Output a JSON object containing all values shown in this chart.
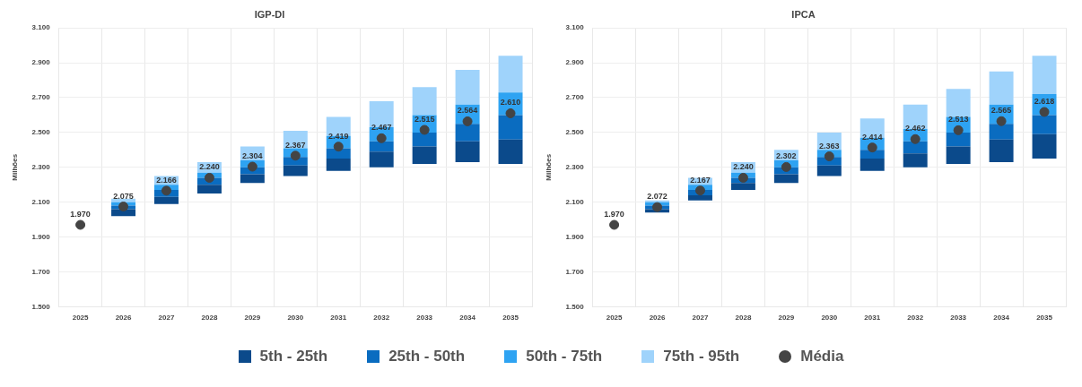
{
  "chart_data": [
    {
      "type": "bar",
      "title": "IGP-DI",
      "ylabel": "Milhões",
      "categories": [
        "2025",
        "2026",
        "2027",
        "2028",
        "2029",
        "2030",
        "2031",
        "2032",
        "2033",
        "2034",
        "2035"
      ],
      "series": [
        {
          "name": "5th - 25th",
          "color": "#0b4a8b",
          "base": [
            null,
            2.02,
            2.09,
            2.15,
            2.21,
            2.25,
            2.28,
            2.3,
            2.32,
            2.33,
            2.32
          ],
          "values": [
            null,
            0.04,
            0.04,
            0.05,
            0.05,
            0.06,
            0.07,
            0.09,
            0.1,
            0.12,
            0.14
          ]
        },
        {
          "name": "25th - 50th",
          "color": "#0a6cc0",
          "base": [
            null,
            2.06,
            2.13,
            2.2,
            2.26,
            2.31,
            2.35,
            2.39,
            2.42,
            2.45,
            2.46
          ],
          "values": [
            null,
            0.02,
            0.04,
            0.04,
            0.04,
            0.05,
            0.06,
            0.06,
            0.08,
            0.1,
            0.14
          ]
        },
        {
          "name": "50th - 75th",
          "color": "#2ea3f2",
          "base": [
            null,
            2.08,
            2.17,
            2.24,
            2.3,
            2.36,
            2.41,
            2.45,
            2.5,
            2.55,
            2.6
          ],
          "values": [
            null,
            0.02,
            0.03,
            0.03,
            0.04,
            0.05,
            0.07,
            0.08,
            0.1,
            0.11,
            0.13
          ]
        },
        {
          "name": "75th - 95th",
          "color": "#9fd3fb",
          "base": [
            null,
            2.1,
            2.2,
            2.27,
            2.34,
            2.41,
            2.48,
            2.53,
            2.6,
            2.66,
            2.73
          ],
          "values": [
            null,
            0.02,
            0.05,
            0.06,
            0.08,
            0.1,
            0.11,
            0.15,
            0.16,
            0.2,
            0.21
          ]
        },
        {
          "name": "Média",
          "type": "scatter",
          "marker": "circle",
          "color": "#444444",
          "values": [
            1.97,
            2.075,
            2.166,
            2.24,
            2.304,
            2.367,
            2.419,
            2.467,
            2.515,
            2.564,
            2.61
          ],
          "value_labels": [
            "1.970",
            "2.075",
            "2.166",
            "2.240",
            "2.304",
            "2.367",
            "2.419",
            "2.467",
            "2.515",
            "2.564",
            "2.610"
          ]
        }
      ],
      "ylim": [
        1.5,
        3.1
      ],
      "yticks": [
        {
          "value": 1.5,
          "label": "1.500"
        },
        {
          "value": 1.7,
          "label": "1.700"
        },
        {
          "value": 1.9,
          "label": "1.900"
        },
        {
          "value": 2.1,
          "label": "2.100"
        },
        {
          "value": 2.3,
          "label": "2.300"
        },
        {
          "value": 2.5,
          "label": "2.500"
        },
        {
          "value": 2.7,
          "label": "2.700"
        },
        {
          "value": 2.9,
          "label": "2.900"
        },
        {
          "value": 3.1,
          "label": "3.100"
        }
      ],
      "grid": true,
      "legend": "bottom"
    },
    {
      "type": "bar",
      "title": "IPCA",
      "ylabel": "Milhões",
      "categories": [
        "2025",
        "2026",
        "2027",
        "2028",
        "2029",
        "2030",
        "2031",
        "2032",
        "2033",
        "2034",
        "2035"
      ],
      "series": [
        {
          "color": "#0b4a8b",
          "base": [
            null,
            2.04,
            2.11,
            2.17,
            2.21,
            2.25,
            2.28,
            2.3,
            2.32,
            2.33,
            2.35
          ],
          "values": [
            null,
            0.02,
            0.03,
            0.04,
            0.05,
            0.06,
            0.07,
            0.08,
            0.1,
            0.13,
            0.14
          ]
        },
        {
          "color": "#0a6cc0",
          "base": [
            null,
            2.06,
            2.14,
            2.21,
            2.26,
            2.31,
            2.35,
            2.38,
            2.42,
            2.46,
            2.49
          ],
          "values": [
            null,
            0.02,
            0.03,
            0.03,
            0.04,
            0.05,
            0.05,
            0.07,
            0.08,
            0.09,
            0.11
          ]
        },
        {
          "color": "#2ea3f2",
          "base": [
            null,
            2.08,
            2.17,
            2.24,
            2.3,
            2.36,
            2.4,
            2.45,
            2.5,
            2.55,
            2.6
          ],
          "values": [
            null,
            0.02,
            0.03,
            0.03,
            0.04,
            0.04,
            0.07,
            0.07,
            0.09,
            0.11,
            0.12
          ]
        },
        {
          "color": "#9fd3fb",
          "base": [
            null,
            2.1,
            2.2,
            2.27,
            2.34,
            2.4,
            2.47,
            2.52,
            2.59,
            2.66,
            2.72
          ],
          "values": [
            null,
            0.01,
            0.04,
            0.06,
            0.06,
            0.1,
            0.11,
            0.14,
            0.16,
            0.19,
            0.22
          ]
        },
        {
          "type": "scatter",
          "marker": "circle",
          "color": "#444444",
          "values": [
            1.97,
            2.072,
            2.167,
            2.24,
            2.302,
            2.363,
            2.414,
            2.462,
            2.513,
            2.565,
            2.618
          ],
          "value_labels": [
            "1.970",
            "2.072",
            "2.167",
            "2.240",
            "2.302",
            "2.363",
            "2.414",
            "2.462",
            "2.513",
            "2.565",
            "2.618"
          ]
        }
      ],
      "ylim": [
        1.5,
        3.1
      ],
      "yticks": [
        {
          "value": 1.5,
          "label": "1.500"
        },
        {
          "value": 1.7,
          "label": "1.700"
        },
        {
          "value": 1.9,
          "label": "1.900"
        },
        {
          "value": 2.1,
          "label": "2.100"
        },
        {
          "value": 2.3,
          "label": "2.300"
        },
        {
          "value": 2.5,
          "label": "2.500"
        },
        {
          "value": 2.7,
          "label": "2.700"
        },
        {
          "value": 2.9,
          "label": "2.900"
        },
        {
          "value": 3.1,
          "label": "3.100"
        }
      ],
      "grid": true
    }
  ]
}
